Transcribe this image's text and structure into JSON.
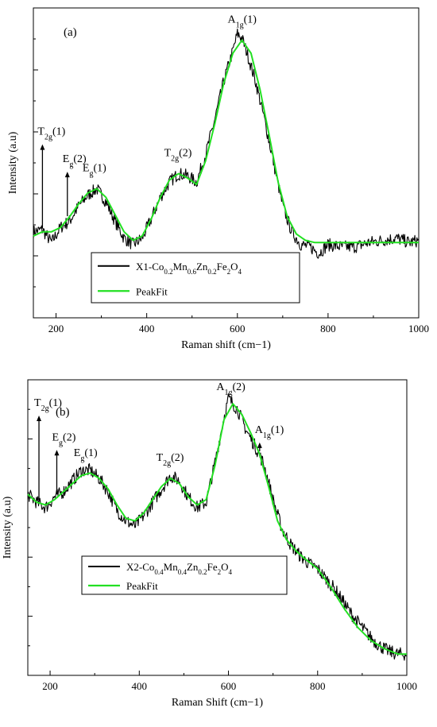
{
  "chart_data": [
    {
      "type": "line",
      "panel_label": "(a)",
      "xlabel": "Raman shift (cm−1)",
      "ylabel": "Intensity (a.u)",
      "xlim": [
        150,
        1000
      ],
      "x_ticks": [
        200,
        400,
        600,
        800,
        1000
      ],
      "yticks_labeled": false,
      "legend_position": "bottom-center",
      "series": [
        {
          "name": "X1-Co0.2Mn0.6Zn0.2Fe2O4",
          "name_parts": [
            [
              "X1-Co",
              ""
            ],
            [
              "0.2",
              "sub"
            ],
            [
              "Mn",
              ""
            ],
            [
              "0.6",
              "sub"
            ],
            [
              "Zn",
              ""
            ],
            [
              "0.2",
              "sub"
            ],
            [
              "Fe",
              ""
            ],
            [
              "2",
              "sub"
            ],
            [
              "O",
              ""
            ],
            [
              "4",
              "sub"
            ]
          ],
          "color": "#000000",
          "noise": 0.03,
          "x": [
            150,
            170,
            190,
            210,
            230,
            250,
            270,
            290,
            310,
            330,
            350,
            370,
            390,
            410,
            430,
            450,
            470,
            490,
            510,
            530,
            550,
            570,
            590,
            600,
            610,
            620,
            640,
            660,
            680,
            700,
            720,
            740,
            760,
            780,
            800,
            830,
            860,
            890,
            920,
            950,
            980,
            1000
          ],
          "y": [
            0.1,
            0.11,
            0.05,
            0.12,
            0.15,
            0.22,
            0.27,
            0.3,
            0.24,
            0.15,
            0.07,
            0.04,
            0.07,
            0.16,
            0.26,
            0.33,
            0.37,
            0.36,
            0.33,
            0.46,
            0.62,
            0.8,
            0.94,
            1.02,
            1.0,
            0.94,
            0.8,
            0.62,
            0.42,
            0.22,
            0.1,
            0.04,
            0.03,
            0.0,
            0.04,
            0.03,
            0.03,
            0.05,
            0.06,
            0.07,
            0.05,
            0.06
          ]
        },
        {
          "name": "PeakFit",
          "color": "#22e022",
          "x": [
            150,
            170,
            190,
            210,
            230,
            250,
            270,
            290,
            310,
            330,
            350,
            370,
            390,
            410,
            430,
            450,
            470,
            490,
            510,
            530,
            550,
            570,
            590,
            610,
            630,
            650,
            670,
            690,
            710,
            730,
            750,
            770,
            800,
            850,
            900,
            950,
            1000
          ],
          "y": [
            0.08,
            0.1,
            0.1,
            0.12,
            0.17,
            0.23,
            0.28,
            0.3,
            0.26,
            0.18,
            0.1,
            0.06,
            0.08,
            0.16,
            0.26,
            0.34,
            0.37,
            0.35,
            0.32,
            0.43,
            0.6,
            0.79,
            0.93,
            0.99,
            0.93,
            0.76,
            0.55,
            0.33,
            0.17,
            0.09,
            0.06,
            0.05,
            0.05,
            0.05,
            0.05,
            0.05,
            0.05
          ]
        }
      ],
      "peaks": [
        {
          "x": 170,
          "main": "T",
          "sub": "2g",
          "tail": "(1)",
          "arrow": true
        },
        {
          "x": 225,
          "main": "E",
          "sub": "g",
          "tail": "(2)",
          "arrow": true
        },
        {
          "x": 290,
          "main": "E",
          "sub": "g",
          "tail": "(1)",
          "arrow": false
        },
        {
          "x": 470,
          "main": "T",
          "sub": "2g",
          "tail": "(2)",
          "arrow": false
        },
        {
          "x": 610,
          "main": "A",
          "sub": "1g",
          "tail": "(1)",
          "arrow": false
        }
      ]
    },
    {
      "type": "line",
      "panel_label": "(b)",
      "xlabel": "Raman Shift (cm−1)",
      "ylabel": "Intensity (a.u)",
      "xlim": [
        150,
        1000
      ],
      "x_ticks": [
        200,
        400,
        600,
        800,
        1000
      ],
      "yticks_labeled": false,
      "legend_position": "middle-center",
      "series": [
        {
          "name": "X2-Co0.4Mn0.4Zn0.2Fe2O4",
          "name_parts": [
            [
              "X2-Co",
              ""
            ],
            [
              "0.4",
              "sub"
            ],
            [
              "Mn",
              ""
            ],
            [
              "0.4",
              "sub"
            ],
            [
              "Zn",
              ""
            ],
            [
              "0.2",
              "sub"
            ],
            [
              "Fe",
              ""
            ],
            [
              "2",
              "sub"
            ],
            [
              "O",
              ""
            ],
            [
              "4",
              "sub"
            ]
          ],
          "color": "#000000",
          "noise": 0.025,
          "x": [
            150,
            170,
            190,
            210,
            230,
            250,
            270,
            290,
            310,
            330,
            350,
            370,
            390,
            410,
            430,
            450,
            470,
            490,
            510,
            530,
            550,
            570,
            590,
            600,
            610,
            620,
            640,
            660,
            680,
            700,
            720,
            740,
            760,
            780,
            800,
            820,
            840,
            860,
            880,
            900,
            920,
            940,
            960,
            980,
            1000
          ],
          "y": [
            0.63,
            0.6,
            0.58,
            0.62,
            0.64,
            0.68,
            0.72,
            0.72,
            0.69,
            0.64,
            0.57,
            0.53,
            0.51,
            0.55,
            0.6,
            0.65,
            0.7,
            0.68,
            0.62,
            0.58,
            0.6,
            0.75,
            0.92,
            0.99,
            0.97,
            0.95,
            0.87,
            0.81,
            0.74,
            0.61,
            0.5,
            0.44,
            0.4,
            0.37,
            0.35,
            0.31,
            0.27,
            0.22,
            0.17,
            0.13,
            0.09,
            0.06,
            0.04,
            0.03,
            0.03
          ]
        },
        {
          "name": "PeakFit",
          "color": "#22e022",
          "x": [
            150,
            170,
            190,
            210,
            230,
            250,
            270,
            290,
            310,
            330,
            350,
            370,
            390,
            410,
            430,
            450,
            470,
            490,
            510,
            530,
            550,
            570,
            590,
            610,
            630,
            650,
            670,
            690,
            710,
            730,
            750,
            770,
            800,
            830,
            860,
            890,
            920,
            950,
            980,
            1000
          ],
          "y": [
            0.63,
            0.6,
            0.59,
            0.61,
            0.64,
            0.67,
            0.7,
            0.71,
            0.69,
            0.65,
            0.59,
            0.54,
            0.53,
            0.56,
            0.61,
            0.66,
            0.69,
            0.67,
            0.62,
            0.59,
            0.61,
            0.74,
            0.91,
            0.97,
            0.93,
            0.86,
            0.78,
            0.66,
            0.53,
            0.46,
            0.42,
            0.39,
            0.35,
            0.28,
            0.2,
            0.13,
            0.08,
            0.05,
            0.03,
            0.03
          ]
        }
      ],
      "peaks": [
        {
          "x": 175,
          "main": "T",
          "sub": "2g",
          "tail": "(1)",
          "arrow": true
        },
        {
          "x": 215,
          "main": "E",
          "sub": "g",
          "tail": "(2)",
          "arrow": true
        },
        {
          "x": 285,
          "main": "E",
          "sub": "g",
          "tail": "(1)",
          "arrow": false
        },
        {
          "x": 470,
          "main": "T",
          "sub": "2g",
          "tail": "(2)",
          "arrow": false
        },
        {
          "x": 605,
          "main": "A",
          "sub": "1g",
          "tail": "(2)",
          "arrow": false
        },
        {
          "x": 670,
          "main": "A",
          "sub": "1g",
          "tail": "(1)",
          "arrow": true
        }
      ]
    }
  ]
}
